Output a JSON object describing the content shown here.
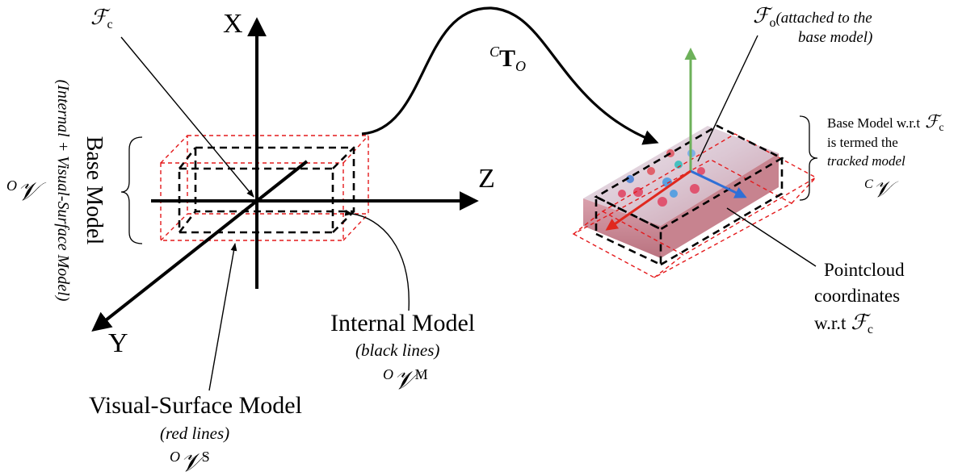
{
  "axes": {
    "x_label": "X",
    "y_label": "Y",
    "z_label": "Z"
  },
  "frames": {
    "camera_frame": "ℱ",
    "camera_frame_sub": "c",
    "object_frame": "ℱ",
    "object_frame_sub": "o",
    "object_frame_note_line1": "(attached to the",
    "object_frame_note_line2": "base model)"
  },
  "transform": {
    "pre_superscript": "C",
    "symbol": "T",
    "subscript": "O"
  },
  "base_model": {
    "title": "Base Model",
    "subtitle": "(Internal + Visual-Surface Model)",
    "symbol_pre": "O",
    "symbol": "𝒱"
  },
  "internal_model": {
    "title": "Internal Model",
    "note": "(black lines)",
    "symbol_pre": "O",
    "symbol": "𝒱",
    "symbol_sup": "M"
  },
  "visual_surface_model": {
    "title": "Visual-Surface Model",
    "note": "(red lines)",
    "symbol_pre": "O",
    "symbol": "𝒱",
    "symbol_sup": "S"
  },
  "tracked_model": {
    "line1_text": "Base Model w.r.t",
    "line1_frame": "ℱ",
    "line1_frame_sub": "c",
    "line2": "is termed the",
    "line3": "tracked model",
    "symbol_pre": "C",
    "symbol": "𝒱"
  },
  "pointcloud": {
    "line1": "Pointcloud",
    "line2": "coordinates",
    "line3_text": "w.r.t",
    "line3_frame": "ℱ",
    "line3_frame_sub": "c"
  },
  "colors": {
    "ink": "#000000",
    "dashed_red": "#e41a1c",
    "axis_green": "#6db15a",
    "axis_blue": "#2f6fd6",
    "axis_red": "#e0281e",
    "object_pink": "#d8a4ae"
  }
}
